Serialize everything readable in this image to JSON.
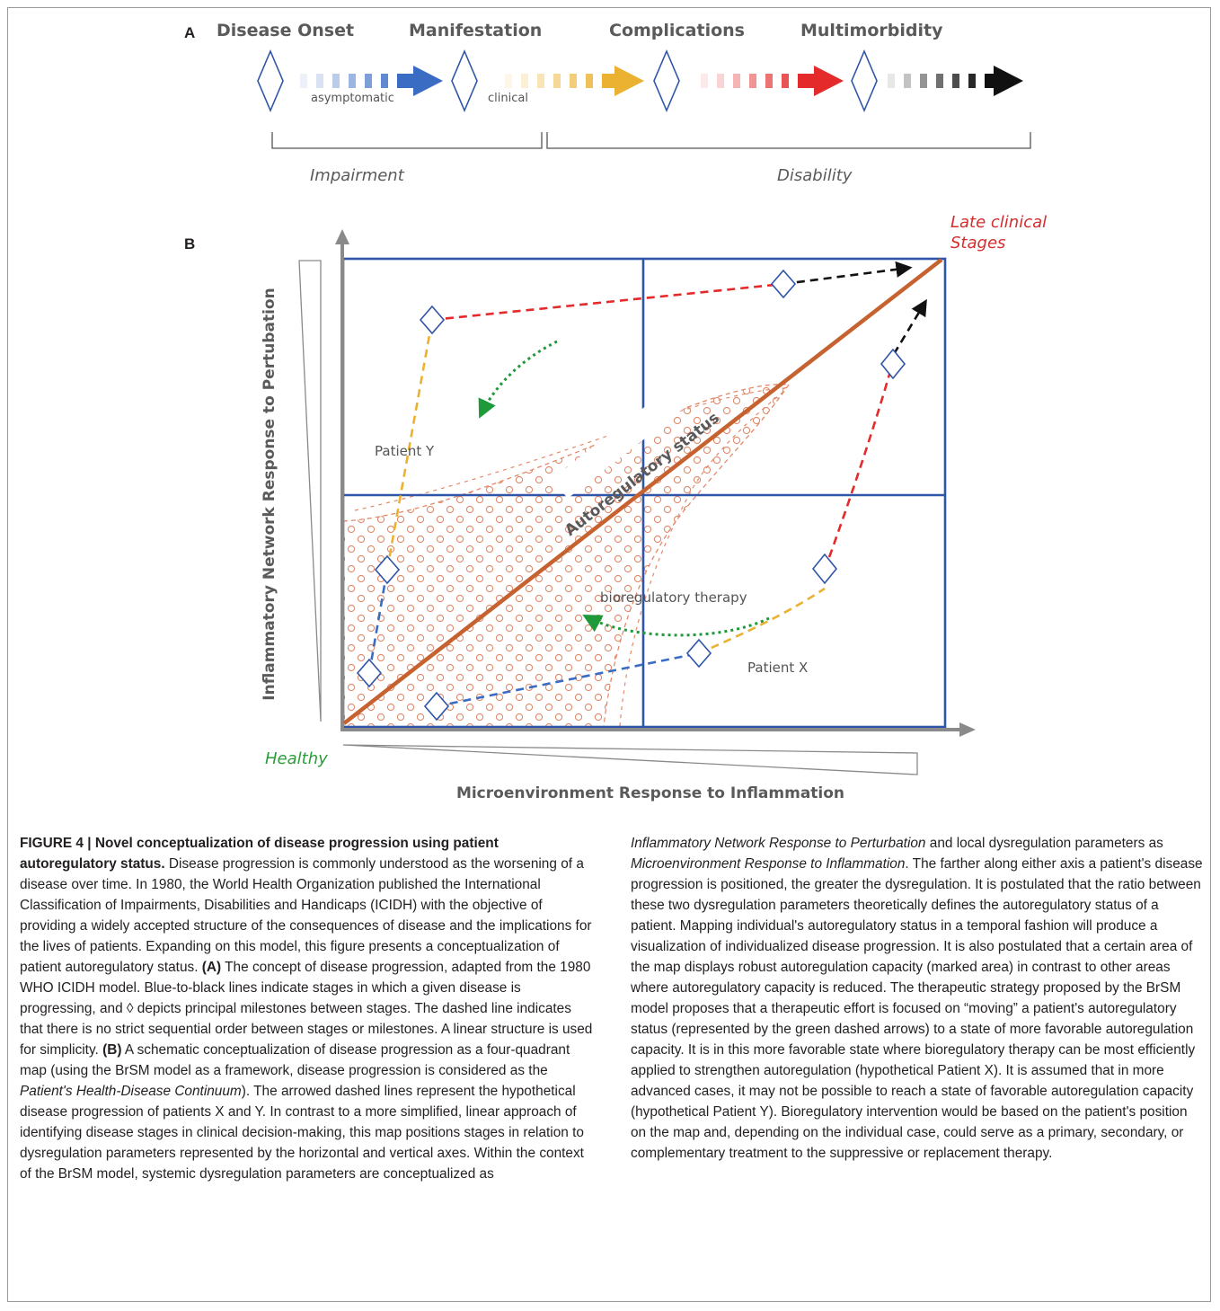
{
  "panel_a": {
    "label": "A",
    "stages": [
      "Disease Onset",
      "Manifestation",
      "Complications",
      "Multimorbidity"
    ],
    "stage_notes": [
      "asymptomatic",
      "clinical"
    ],
    "bracket_labels": [
      "Impairment",
      "Disability"
    ],
    "arrow_colors": [
      "#3a6cc4",
      "#ebb232",
      "#e42a2a",
      "#111111"
    ]
  },
  "panel_b": {
    "label": "B",
    "y_axis_label": "Inflammatory Network Response to Pertubation",
    "x_axis_label": "Microenvironment Response to Inflammation",
    "corner_top_right": "Late clinical Stages",
    "corner_bottom_left": "Healthy",
    "diagonal_label": "Autoregulatory status",
    "therapy_label": "bioregulatory therapy",
    "patients": [
      "Patient X",
      "Patient Y"
    ],
    "colors": {
      "quadrant_lines": "#2f55a8",
      "diagonal": "#c5622f",
      "marked_area": "#e5896a",
      "therapy_arrow": "#1e9a3a",
      "late_stage_text": "#d42d2d",
      "healthy_text": "#2d9d3a"
    }
  },
  "caption": {
    "figure_number": "FIGURE 4 | ",
    "title": "Novel conceptualization of disease progression using patient autoregulatory status.",
    "intro": " Disease progression is commonly understood as the worsening of a disease over time. In 1980, the World Health Organization published the International Classification of Impairments, Disabilities and Handicaps (ICIDH) with the objective of providing a widely accepted structure of the consequences of disease and the implications for the lives of patients. Expanding on this model, this figure presents a conceptualization of patient autoregulatory status. ",
    "a_label": "(A)",
    "a_text": " The concept of disease progression, adapted from the 1980 WHO ICIDH model. Blue-to-black lines indicate stages in which a given disease is progressing, and ◊ depicts principal milestones between stages. The dashed line indicates that there is no strict sequential order between stages or milestones. A linear structure is used for simplicity. ",
    "b_label": "(B)",
    "b_text1": " A schematic conceptualization of disease progression as a four-quadrant map (using the BrSM model as a framework, disease progression is considered as the ",
    "b_italic1": "Patient's Health-Disease Continuum",
    "b_text2": "). The arrowed dashed lines represent the hypothetical disease progression of patients X and Y. In contrast to a more simplified, linear approach of identifying disease stages in clinical decision-making, this map positions stages in relation to dysregulation parameters represented by the horizontal and vertical axes. Within the context of the BrSM model, systemic dysregulation parameters are conceptualized as ",
    "b_italic2": "Inflammatory Network Response to Perturbation",
    "b_text3": " and local dysregulation parameters as ",
    "b_italic3": "Microenvironment Response to Inflammation",
    "b_text4": ". The farther along either axis a patient's disease progression is positioned, the greater the dysregulation. It is postulated that the ratio between these two dysregulation parameters theoretically defines the autoregulatory status of a patient. Mapping individual's autoregulatory status in a temporal fashion will produce a visualization of individualized disease progression. It is also postulated that a certain area of the map displays robust autoregulation capacity (marked area) in contrast to other areas where autoregulatory capacity is reduced. The therapeutic strategy proposed by the BrSM model proposes that a therapeutic effort is focused on “moving” a patient's autoregulatory status (represented by the green dashed arrows) to a state of more favorable autoregulation capacity. It is in this more favorable state where bioregulatory therapy can be most efficiently applied to strengthen autoregulation (hypothetical Patient X). It is assumed that in more advanced cases, it may not be possible to reach a state of favorable autoregulation capacity (hypothetical Patient Y). Bioregulatory intervention would be based on the patient's position on the map and, depending on the individual case, could serve as a primary, secondary, or complementary treatment to the suppressive or replacement therapy."
  }
}
